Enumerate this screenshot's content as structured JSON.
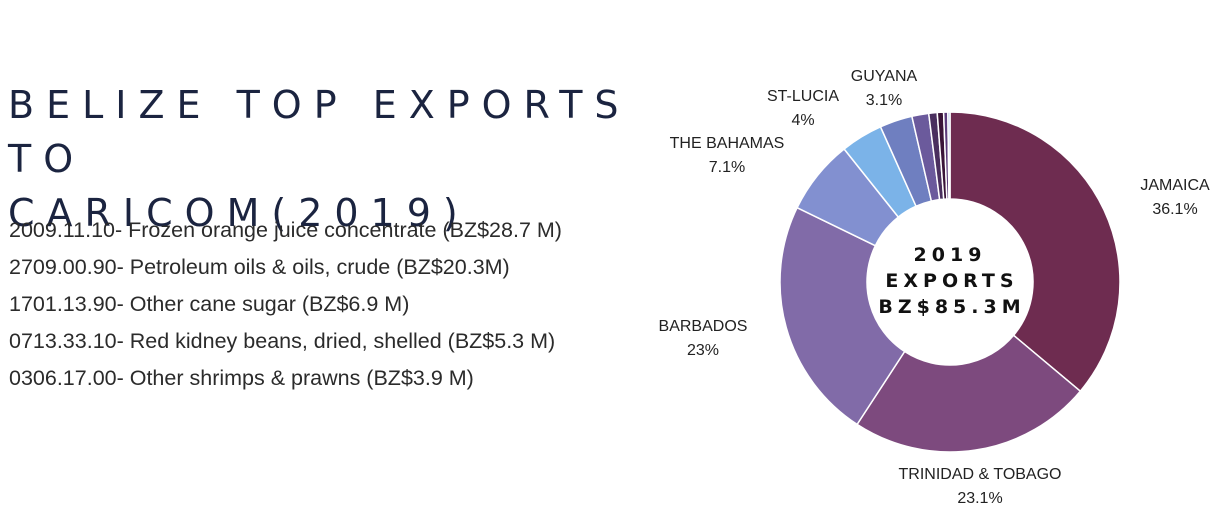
{
  "title_lines": [
    "BELIZE TOP EXPORTS TO",
    "CARICOM(2019)"
  ],
  "exports": [
    "2009.11.10- Frozen orange juice concentrate (BZ$28.7 M)",
    "2709.00.90- Petroleum oils & oils, crude (BZ$20.3M)",
    "1701.13.90- Other cane sugar (BZ$6.9 M)",
    "0713.33.10- Red kidney beans, dried, shelled (BZ$5.3 M)",
    "0306.17.00- Other shrimps & prawns (BZ$3.9 M)"
  ],
  "chart_data": {
    "type": "pie",
    "donut": true,
    "center_text": [
      "2019",
      "EXPORTS",
      "BZ$85.3M"
    ],
    "slices": [
      {
        "label": "JAMAICA",
        "display": "36.1%",
        "value": 36.1,
        "color": "#6e2c50",
        "labeled": true
      },
      {
        "label": "TRINIDAD & TOBAGO",
        "display": "23.1%",
        "value": 23.1,
        "color": "#7d4a7e",
        "labeled": true
      },
      {
        "label": "BARBADOS",
        "display": "23%",
        "value": 23.0,
        "color": "#816ba8",
        "labeled": true
      },
      {
        "label": "THE BAHAMAS",
        "display": "7.1%",
        "value": 7.1,
        "color": "#8290d0",
        "labeled": true
      },
      {
        "label": "ST-LUCIA",
        "display": "4%",
        "value": 4.0,
        "color": "#7bb3e8",
        "labeled": true
      },
      {
        "label": "GUYANA",
        "display": "3.1%",
        "value": 3.1,
        "color": "#6f7fc0",
        "labeled": true
      },
      {
        "label": "",
        "display": "",
        "value": 1.6,
        "color": "#6b5a9c",
        "labeled": false
      },
      {
        "label": "",
        "display": "",
        "value": 0.8,
        "color": "#4a2f5e",
        "labeled": false
      },
      {
        "label": "",
        "display": "",
        "value": 0.6,
        "color": "#3a1438",
        "labeled": false
      },
      {
        "label": "",
        "display": "",
        "value": 0.4,
        "color": "#5b3a7a",
        "labeled": false
      },
      {
        "label": "",
        "display": "",
        "value": 0.2,
        "color": "#9ab0e0",
        "labeled": false
      }
    ]
  }
}
